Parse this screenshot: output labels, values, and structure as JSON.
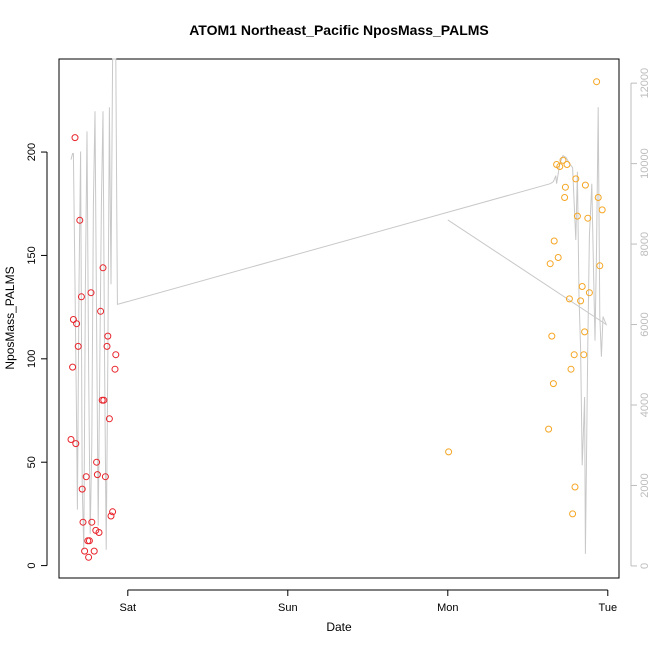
{
  "chart_data": {
    "type": "scatter",
    "title": "ATOM1 Northeast_Pacific NposMass_PALMS",
    "xlabel": "Date",
    "ylabel": "NposMass_PALMS",
    "x_ticks": [
      {
        "label": "Sat",
        "day": 1
      },
      {
        "label": "Sun",
        "day": 2
      },
      {
        "label": "Mon",
        "day": 3
      },
      {
        "label": "Tue",
        "day": 4
      }
    ],
    "xlim_day": [
      0.57,
      4.07
    ],
    "ylim": [
      -6,
      245
    ],
    "y_ticks": [
      0,
      50,
      100,
      150,
      200
    ],
    "y2lim": [
      -300,
      12600
    ],
    "y2_ticks": [
      0,
      2000,
      4000,
      6000,
      8000,
      10000,
      12000
    ],
    "colors": {
      "series1": "#e8242b",
      "series2": "#f5a623",
      "line": "#c8c8c8",
      "right_axis": "#bdbdbd"
    },
    "series": [
      {
        "color": "#e8242b",
        "points": [
          [
            0.645,
            61
          ],
          [
            0.655,
            96
          ],
          [
            0.66,
            119
          ],
          [
            0.67,
            207
          ],
          [
            0.675,
            59
          ],
          [
            0.68,
            117
          ],
          [
            0.69,
            106
          ],
          [
            0.7,
            167
          ],
          [
            0.71,
            130
          ],
          [
            0.715,
            37
          ],
          [
            0.72,
            21
          ],
          [
            0.73,
            7
          ],
          [
            0.74,
            43
          ],
          [
            0.75,
            12
          ],
          [
            0.755,
            4
          ],
          [
            0.76,
            12
          ],
          [
            0.77,
            132
          ],
          [
            0.775,
            21
          ],
          [
            0.79,
            7
          ],
          [
            0.8,
            17
          ],
          [
            0.805,
            50
          ],
          [
            0.81,
            44
          ],
          [
            0.82,
            16
          ],
          [
            0.83,
            123
          ],
          [
            0.84,
            80
          ],
          [
            0.845,
            144
          ],
          [
            0.85,
            80
          ],
          [
            0.86,
            43
          ],
          [
            0.87,
            106
          ],
          [
            0.875,
            111
          ],
          [
            0.885,
            71
          ],
          [
            0.895,
            24
          ],
          [
            0.905,
            26
          ],
          [
            0.92,
            95
          ],
          [
            0.925,
            102
          ]
        ]
      },
      {
        "color": "#f5a623",
        "points": [
          [
            3.005,
            55
          ],
          [
            3.63,
            66
          ],
          [
            3.64,
            146
          ],
          [
            3.65,
            111
          ],
          [
            3.66,
            88
          ],
          [
            3.665,
            157
          ],
          [
            3.68,
            194
          ],
          [
            3.69,
            149
          ],
          [
            3.7,
            193
          ],
          [
            3.72,
            196
          ],
          [
            3.73,
            178
          ],
          [
            3.735,
            183
          ],
          [
            3.745,
            194
          ],
          [
            3.76,
            129
          ],
          [
            3.77,
            95
          ],
          [
            3.78,
            25
          ],
          [
            3.79,
            102
          ],
          [
            3.795,
            38
          ],
          [
            3.8,
            187
          ],
          [
            3.81,
            169
          ],
          [
            3.83,
            128
          ],
          [
            3.84,
            135
          ],
          [
            3.85,
            102
          ],
          [
            3.855,
            113
          ],
          [
            3.86,
            184
          ],
          [
            3.875,
            168
          ],
          [
            3.885,
            132
          ],
          [
            3.93,
            234
          ],
          [
            3.94,
            178
          ],
          [
            3.95,
            145
          ],
          [
            3.965,
            172
          ]
        ]
      }
    ],
    "line_series": [
      [
        0.645,
        10100
      ],
      [
        0.655,
        10250
      ],
      [
        0.66,
        10250
      ],
      [
        0.67,
        7000
      ],
      [
        0.68,
        3500
      ],
      [
        0.685,
        1400
      ],
      [
        0.695,
        7000
      ],
      [
        0.705,
        10300
      ],
      [
        0.715,
        2000
      ],
      [
        0.725,
        400
      ],
      [
        0.735,
        7000
      ],
      [
        0.745,
        10800
      ],
      [
        0.755,
        5000
      ],
      [
        0.765,
        800
      ],
      [
        0.775,
        3000
      ],
      [
        0.785,
        9000
      ],
      [
        0.795,
        11300
      ],
      [
        0.805,
        6000
      ],
      [
        0.815,
        1000
      ],
      [
        0.825,
        5000
      ],
      [
        0.835,
        9000
      ],
      [
        0.845,
        11300
      ],
      [
        0.855,
        5000
      ],
      [
        0.865,
        400
      ],
      [
        0.875,
        5000
      ],
      [
        0.885,
        11400
      ],
      [
        0.895,
        7000
      ],
      [
        0.905,
        12600
      ],
      [
        0.915,
        12600
      ],
      [
        0.925,
        12600
      ],
      [
        0.935,
        6500
      ],
      [
        3.64,
        9500
      ],
      [
        3.66,
        9550
      ],
      [
        3.675,
        9700
      ],
      [
        3.68,
        9500
      ],
      [
        3.7,
        10000
      ],
      [
        3.72,
        10200
      ],
      [
        3.74,
        10150
      ],
      [
        3.76,
        10000
      ],
      [
        3.78,
        9900
      ],
      [
        3.79,
        9000
      ],
      [
        3.8,
        8100
      ],
      [
        3.81,
        9800
      ],
      [
        3.82,
        6700
      ],
      [
        3.83,
        5400
      ],
      [
        3.84,
        2500
      ],
      [
        3.85,
        3600
      ],
      [
        3.855,
        4200
      ],
      [
        3.86,
        300
      ],
      [
        3.875,
        5500
      ],
      [
        3.885,
        8200
      ],
      [
        3.9,
        9500
      ],
      [
        3.91,
        7500
      ],
      [
        3.92,
        5600
      ],
      [
        3.93,
        8000
      ],
      [
        3.94,
        11400
      ],
      [
        3.95,
        6200
      ],
      [
        3.96,
        5200
      ],
      [
        3.97,
        6200
      ],
      [
        3.98,
        6100
      ],
      [
        3.99,
        6000
      ],
      [
        3.0,
        8600
      ]
    ]
  }
}
